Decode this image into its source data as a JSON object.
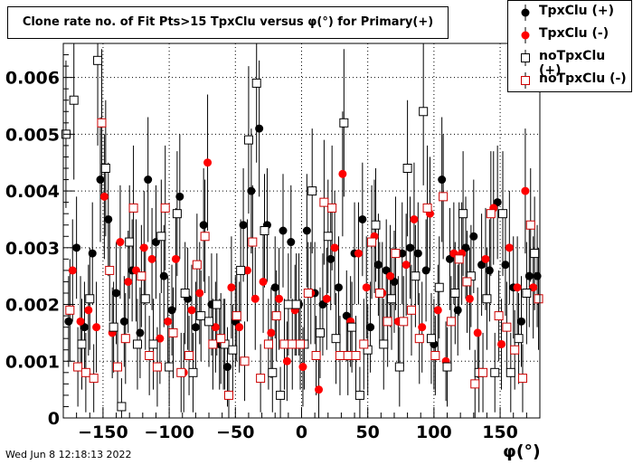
{
  "title": "Clone rate no. of Fit Pts>15 TpxClu versus φ(°) for Primary(+)",
  "footer": "Wed Jun  8 12:18:13 2022",
  "legend": [
    {
      "label": "TpxClu (+)",
      "color": "#000000",
      "marker": "filled-circle"
    },
    {
      "label": "TpxClu (-)",
      "color": "#ff0000",
      "marker": "filled-circle"
    },
    {
      "label": "noTpxClu (+)",
      "color": "#000000",
      "marker": "open-square"
    },
    {
      "label": "noTpxClu (-)",
      "color": "#cc0000",
      "marker": "open-square"
    }
  ],
  "chart_data": {
    "type": "scatter",
    "title": "Clone rate no. of Fit Pts>15 TpxClu versus φ(°) for Primary(+)",
    "xlabel": "φ(°)",
    "ylabel": "",
    "xlim": [
      -180,
      180
    ],
    "ylim": [
      0,
      0.0066
    ],
    "xticks": [
      "−150",
      "−100",
      "−50",
      "0",
      "50",
      "100",
      "150"
    ],
    "yticks": [
      "0",
      "0.001",
      "0.002",
      "0.003",
      "0.004",
      "0.005",
      "0.006"
    ],
    "grid": true,
    "legend_position": "top-right",
    "series": [
      {
        "name": "TpxClu (+)",
        "x": [
          -176,
          -170,
          -164,
          -158,
          -152,
          -146,
          -140,
          -134,
          -128,
          -122,
          -116,
          -110,
          -104,
          -98,
          -92,
          -86,
          -80,
          -74,
          -68,
          -62,
          -56,
          -50,
          -44,
          -38,
          -32,
          -26,
          -20,
          -14,
          -8,
          -2,
          4,
          10,
          16,
          22,
          28,
          34,
          40,
          46,
          52,
          58,
          64,
          70,
          76,
          82,
          88,
          94,
          100,
          106,
          112,
          118,
          124,
          130,
          136,
          142,
          148,
          154,
          160,
          166,
          172,
          178
        ],
        "y": [
          0.0017,
          0.003,
          0.0016,
          0.0029,
          0.0042,
          0.0035,
          0.0022,
          0.0017,
          0.0026,
          0.0015,
          0.0042,
          0.0031,
          0.0025,
          0.0019,
          0.0039,
          0.0021,
          0.0016,
          0.0034,
          0.002,
          0.0013,
          0.0009,
          0.0017,
          0.0034,
          0.004,
          0.0051,
          0.0034,
          0.0023,
          0.0033,
          0.0031,
          0.002,
          0.0033,
          0.0022,
          0.002,
          0.0028,
          0.0023,
          0.0018,
          0.0029,
          0.0035,
          0.0016,
          0.0027,
          0.0026,
          0.0024,
          0.0029,
          0.003,
          0.0029,
          0.0026,
          0.0013,
          0.0042,
          0.0028,
          0.0019,
          0.003,
          0.0032,
          0.0027,
          0.0026,
          0.0038,
          0.0027,
          0.0023,
          0.0017,
          0.0025,
          0.0025
        ],
        "err": [
          0.0008,
          0.0009,
          0.0008,
          0.0009,
          0.0011,
          0.001,
          0.0009,
          0.0008,
          0.0009,
          0.0008,
          0.0011,
          0.001,
          0.0009,
          0.0008,
          0.0011,
          0.0009,
          0.0008,
          0.001,
          0.0009,
          0.0008,
          0.0007,
          0.0008,
          0.001,
          0.0011,
          0.0012,
          0.001,
          0.0009,
          0.001,
          0.001,
          0.0009,
          0.001,
          0.0009,
          0.0009,
          0.0009,
          0.0009,
          0.0008,
          0.0009,
          0.001,
          0.0008,
          0.0009,
          0.0009,
          0.0009,
          0.0009,
          0.0009,
          0.0009,
          0.0009,
          0.0008,
          0.0011,
          0.0009,
          0.0008,
          0.0009,
          0.001,
          0.0009,
          0.0009,
          0.001,
          0.0009,
          0.0009,
          0.0008,
          0.0009,
          0.0009
        ]
      },
      {
        "name": "TpxClu (-)",
        "x": [
          -173,
          -167,
          -161,
          -155,
          -149,
          -143,
          -137,
          -131,
          -125,
          -119,
          -113,
          -107,
          -101,
          -95,
          -89,
          -83,
          -77,
          -71,
          -65,
          -59,
          -53,
          -47,
          -41,
          -35,
          -29,
          -23,
          -17,
          -11,
          -5,
          1,
          7,
          13,
          19,
          25,
          31,
          37,
          43,
          49,
          55,
          61,
          67,
          73,
          79,
          85,
          91,
          97,
          103,
          109,
          115,
          121,
          127,
          133,
          139,
          145,
          151,
          157,
          163,
          169,
          175
        ],
        "y": [
          0.0026,
          0.0017,
          0.0019,
          0.0016,
          0.0039,
          0.0015,
          0.0031,
          0.0024,
          0.0026,
          0.003,
          0.0028,
          0.0014,
          0.0017,
          0.0028,
          0.0008,
          0.0019,
          0.0022,
          0.0045,
          0.0016,
          0.0013,
          0.0023,
          0.0016,
          0.0026,
          0.0021,
          0.0024,
          0.0015,
          0.0021,
          0.001,
          0.0019,
          0.0009,
          0.0022,
          0.0005,
          0.0021,
          0.003,
          0.0043,
          0.0017,
          0.0029,
          0.0023,
          0.0032,
          0.0022,
          0.0025,
          0.0017,
          0.0027,
          0.0035,
          0.0016,
          0.0036,
          0.0019,
          0.001,
          0.0029,
          0.0029,
          0.0021,
          0.0015,
          0.0028,
          0.0037,
          0.0013,
          0.003,
          0.0023,
          0.004,
          0.0023
        ],
        "err": [
          0.0009,
          0.0008,
          0.0008,
          0.0008,
          0.0011,
          0.0008,
          0.001,
          0.0009,
          0.0009,
          0.001,
          0.0009,
          0.0008,
          0.0008,
          0.0009,
          0.0007,
          0.0008,
          0.0009,
          0.0012,
          0.0008,
          0.0008,
          0.0009,
          0.0008,
          0.0009,
          0.0009,
          0.0009,
          0.0008,
          0.0009,
          0.0007,
          0.0008,
          0.0007,
          0.0009,
          0.0006,
          0.0009,
          0.001,
          0.0011,
          0.0008,
          0.0009,
          0.0009,
          0.001,
          0.0009,
          0.0009,
          0.0008,
          0.0009,
          0.001,
          0.0008,
          0.001,
          0.0008,
          0.0007,
          0.0009,
          0.0009,
          0.0009,
          0.0008,
          0.0009,
          0.001,
          0.0008,
          0.001,
          0.0009,
          0.0011,
          0.0009
        ]
      },
      {
        "name": "noTpxClu (+)",
        "x": [
          -178,
          -172,
          -166,
          -160,
          -154,
          -148,
          -142,
          -136,
          -130,
          -124,
          -118,
          -112,
          -106,
          -100,
          -94,
          -88,
          -82,
          -76,
          -70,
          -64,
          -58,
          -52,
          -46,
          -40,
          -34,
          -28,
          -22,
          -16,
          -10,
          -4,
          2,
          8,
          14,
          20,
          26,
          32,
          38,
          44,
          50,
          56,
          62,
          68,
          74,
          80,
          86,
          92,
          98,
          104,
          110,
          116,
          122,
          128,
          134,
          140,
          146,
          152,
          158,
          164,
          170,
          176
        ],
        "y": [
          0.005,
          0.0056,
          0.0013,
          0.0021,
          0.0063,
          0.0044,
          0.0016,
          0.0002,
          0.0031,
          0.0013,
          0.0021,
          0.0013,
          0.0032,
          0.0009,
          0.0036,
          0.0022,
          0.0008,
          0.0018,
          0.0017,
          0.002,
          0.0013,
          0.0012,
          0.0026,
          0.0049,
          0.0059,
          0.0033,
          0.0008,
          0.0004,
          0.002,
          0.002,
          0.0013,
          0.004,
          0.0015,
          0.0032,
          0.0014,
          0.0052,
          0.0016,
          0.0004,
          0.0012,
          0.0034,
          0.0013,
          0.0021,
          0.0009,
          0.0044,
          0.0025,
          0.0054,
          0.0014,
          0.0023,
          0.0009,
          0.0022,
          0.0036,
          0.0025,
          0.0008,
          0.0021,
          0.0008,
          0.0036,
          0.0008,
          0.0014,
          0.0022,
          0.0029
        ],
        "err": [
          0.0013,
          0.0014,
          0.0008,
          0.0009,
          0.0015,
          0.0012,
          0.0008,
          0.0005,
          0.001,
          0.0008,
          0.0009,
          0.0008,
          0.001,
          0.0007,
          0.0011,
          0.0009,
          0.0007,
          0.0008,
          0.0008,
          0.0009,
          0.0008,
          0.0008,
          0.0009,
          0.0013,
          0.0014,
          0.001,
          0.0007,
          0.0005,
          0.0009,
          0.0009,
          0.0008,
          0.0011,
          0.0008,
          0.001,
          0.0008,
          0.0013,
          0.0008,
          0.0005,
          0.0008,
          0.001,
          0.0008,
          0.0009,
          0.0007,
          0.0012,
          0.0009,
          0.0013,
          0.0008,
          0.0009,
          0.0007,
          0.0009,
          0.0011,
          0.0009,
          0.0007,
          0.0009,
          0.0007,
          0.0011,
          0.0007,
          0.0008,
          0.0009,
          0.001
        ]
      },
      {
        "name": "noTpxClu (-)",
        "x": [
          -175,
          -169,
          -163,
          -157,
          -151,
          -145,
          -139,
          -133,
          -127,
          -121,
          -115,
          -109,
          -103,
          -97,
          -91,
          -85,
          -79,
          -73,
          -67,
          -61,
          -55,
          -49,
          -43,
          -37,
          -31,
          -25,
          -19,
          -13,
          -7,
          -1,
          5,
          11,
          17,
          23,
          29,
          35,
          41,
          47,
          53,
          59,
          65,
          71,
          77,
          83,
          89,
          95,
          101,
          107,
          113,
          119,
          125,
          131,
          137,
          143,
          149,
          155,
          161,
          167,
          173,
          179
        ],
        "y": [
          0.0019,
          0.0009,
          0.0008,
          0.0007,
          0.0052,
          0.0026,
          0.0009,
          0.0014,
          0.0037,
          0.0025,
          0.0011,
          0.0009,
          0.0037,
          0.0015,
          0.0008,
          0.0011,
          0.0027,
          0.0032,
          0.0013,
          0.0014,
          0.0004,
          0.0018,
          0.001,
          0.0031,
          0.0007,
          0.0013,
          0.0018,
          0.0013,
          0.0013,
          0.0013,
          0.0022,
          0.0011,
          0.0038,
          0.0037,
          0.0011,
          0.0011,
          0.0011,
          0.0013,
          0.0031,
          0.0022,
          0.0017,
          0.0029,
          0.0017,
          0.0019,
          0.0014,
          0.0037,
          0.0011,
          0.0039,
          0.0017,
          0.0028,
          0.0024,
          0.0006,
          0.0008,
          0.0036,
          0.0018,
          0.0016,
          0.0012,
          0.0007,
          0.0034,
          0.0021
        ],
        "err": [
          0.0009,
          0.0007,
          0.0007,
          0.0006,
          0.0013,
          0.0009,
          0.0007,
          0.0008,
          0.0011,
          0.0009,
          0.0007,
          0.0007,
          0.0011,
          0.0008,
          0.0007,
          0.0007,
          0.0009,
          0.001,
          0.0008,
          0.0008,
          0.0005,
          0.0008,
          0.0007,
          0.001,
          0.0006,
          0.0008,
          0.0008,
          0.0008,
          0.0008,
          0.0008,
          0.0009,
          0.0007,
          0.0011,
          0.0011,
          0.0007,
          0.0007,
          0.0007,
          0.0008,
          0.001,
          0.0009,
          0.0008,
          0.001,
          0.0008,
          0.0008,
          0.0008,
          0.0011,
          0.0007,
          0.0011,
          0.0008,
          0.001,
          0.0009,
          0.0006,
          0.0007,
          0.0011,
          0.0008,
          0.0008,
          0.0007,
          0.0006,
          0.001,
          0.0009
        ]
      }
    ]
  }
}
